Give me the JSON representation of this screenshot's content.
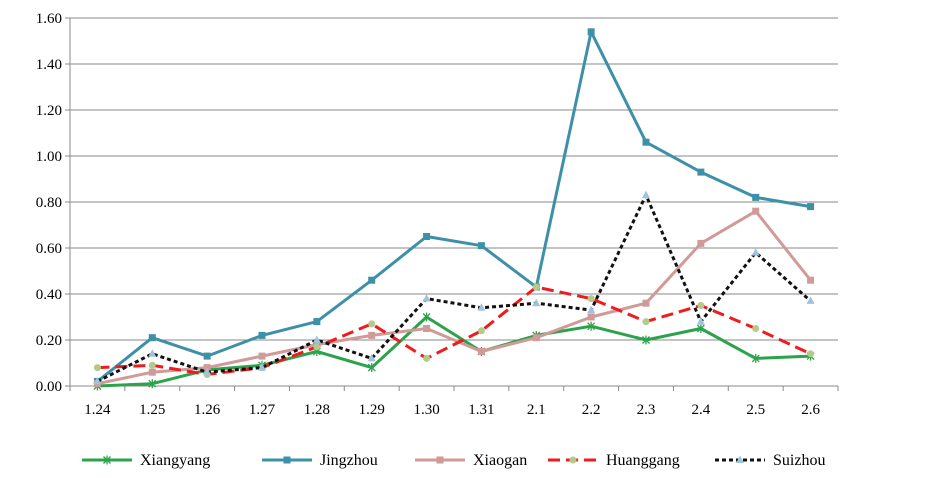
{
  "chart_data": {
    "type": "line",
    "title": "",
    "xlabel": "",
    "ylabel": "",
    "categories": [
      "1.24",
      "1.25",
      "1.26",
      "1.27",
      "1.28",
      "1.29",
      "1.30",
      "1.31",
      "2.1",
      "2.2",
      "2.3",
      "2.4",
      "2.5",
      "2.6"
    ],
    "ylim": [
      0,
      1.6
    ],
    "yticks": [
      "0.00",
      "0.20",
      "0.40",
      "0.60",
      "0.80",
      "1.00",
      "1.20",
      "1.40",
      "1.60"
    ],
    "ytick_values": [
      0,
      0.2,
      0.4,
      0.6,
      0.8,
      1.0,
      1.2,
      1.4,
      1.6
    ],
    "legend_position": "bottom",
    "series": [
      {
        "name": "Xiangyang",
        "color": "#2ca34b",
        "dash": "solid",
        "marker": "star",
        "values": [
          0.0,
          0.01,
          0.07,
          0.09,
          0.15,
          0.08,
          0.3,
          0.15,
          0.22,
          0.26,
          0.2,
          0.25,
          0.12,
          0.13
        ]
      },
      {
        "name": "Jingzhou",
        "color": "#3e90a8",
        "dash": "solid",
        "marker": "square",
        "values": [
          0.02,
          0.21,
          0.13,
          0.22,
          0.28,
          0.46,
          0.65,
          0.61,
          0.43,
          1.54,
          1.06,
          0.93,
          0.82,
          0.78
        ]
      },
      {
        "name": "Xiaogan",
        "color": "#d09a99",
        "dash": "solid",
        "marker": "square",
        "values": [
          0.01,
          0.06,
          0.08,
          0.13,
          0.18,
          0.22,
          0.25,
          0.15,
          0.21,
          0.3,
          0.36,
          0.62,
          0.76,
          0.46
        ]
      },
      {
        "name": "Huanggang",
        "color": "#ee1c1c",
        "dash": "longdash",
        "marker": "circle",
        "values": [
          0.08,
          0.09,
          0.05,
          0.08,
          0.17,
          0.27,
          0.12,
          0.24,
          0.43,
          0.38,
          0.28,
          0.35,
          0.25,
          0.14
        ]
      },
      {
        "name": "Suizhou",
        "color": "#111111",
        "dash": "dot",
        "marker": "triangle",
        "values": [
          0.02,
          0.14,
          0.06,
          0.08,
          0.2,
          0.12,
          0.38,
          0.34,
          0.36,
          0.33,
          0.83,
          0.28,
          0.58,
          0.37
        ]
      }
    ]
  }
}
